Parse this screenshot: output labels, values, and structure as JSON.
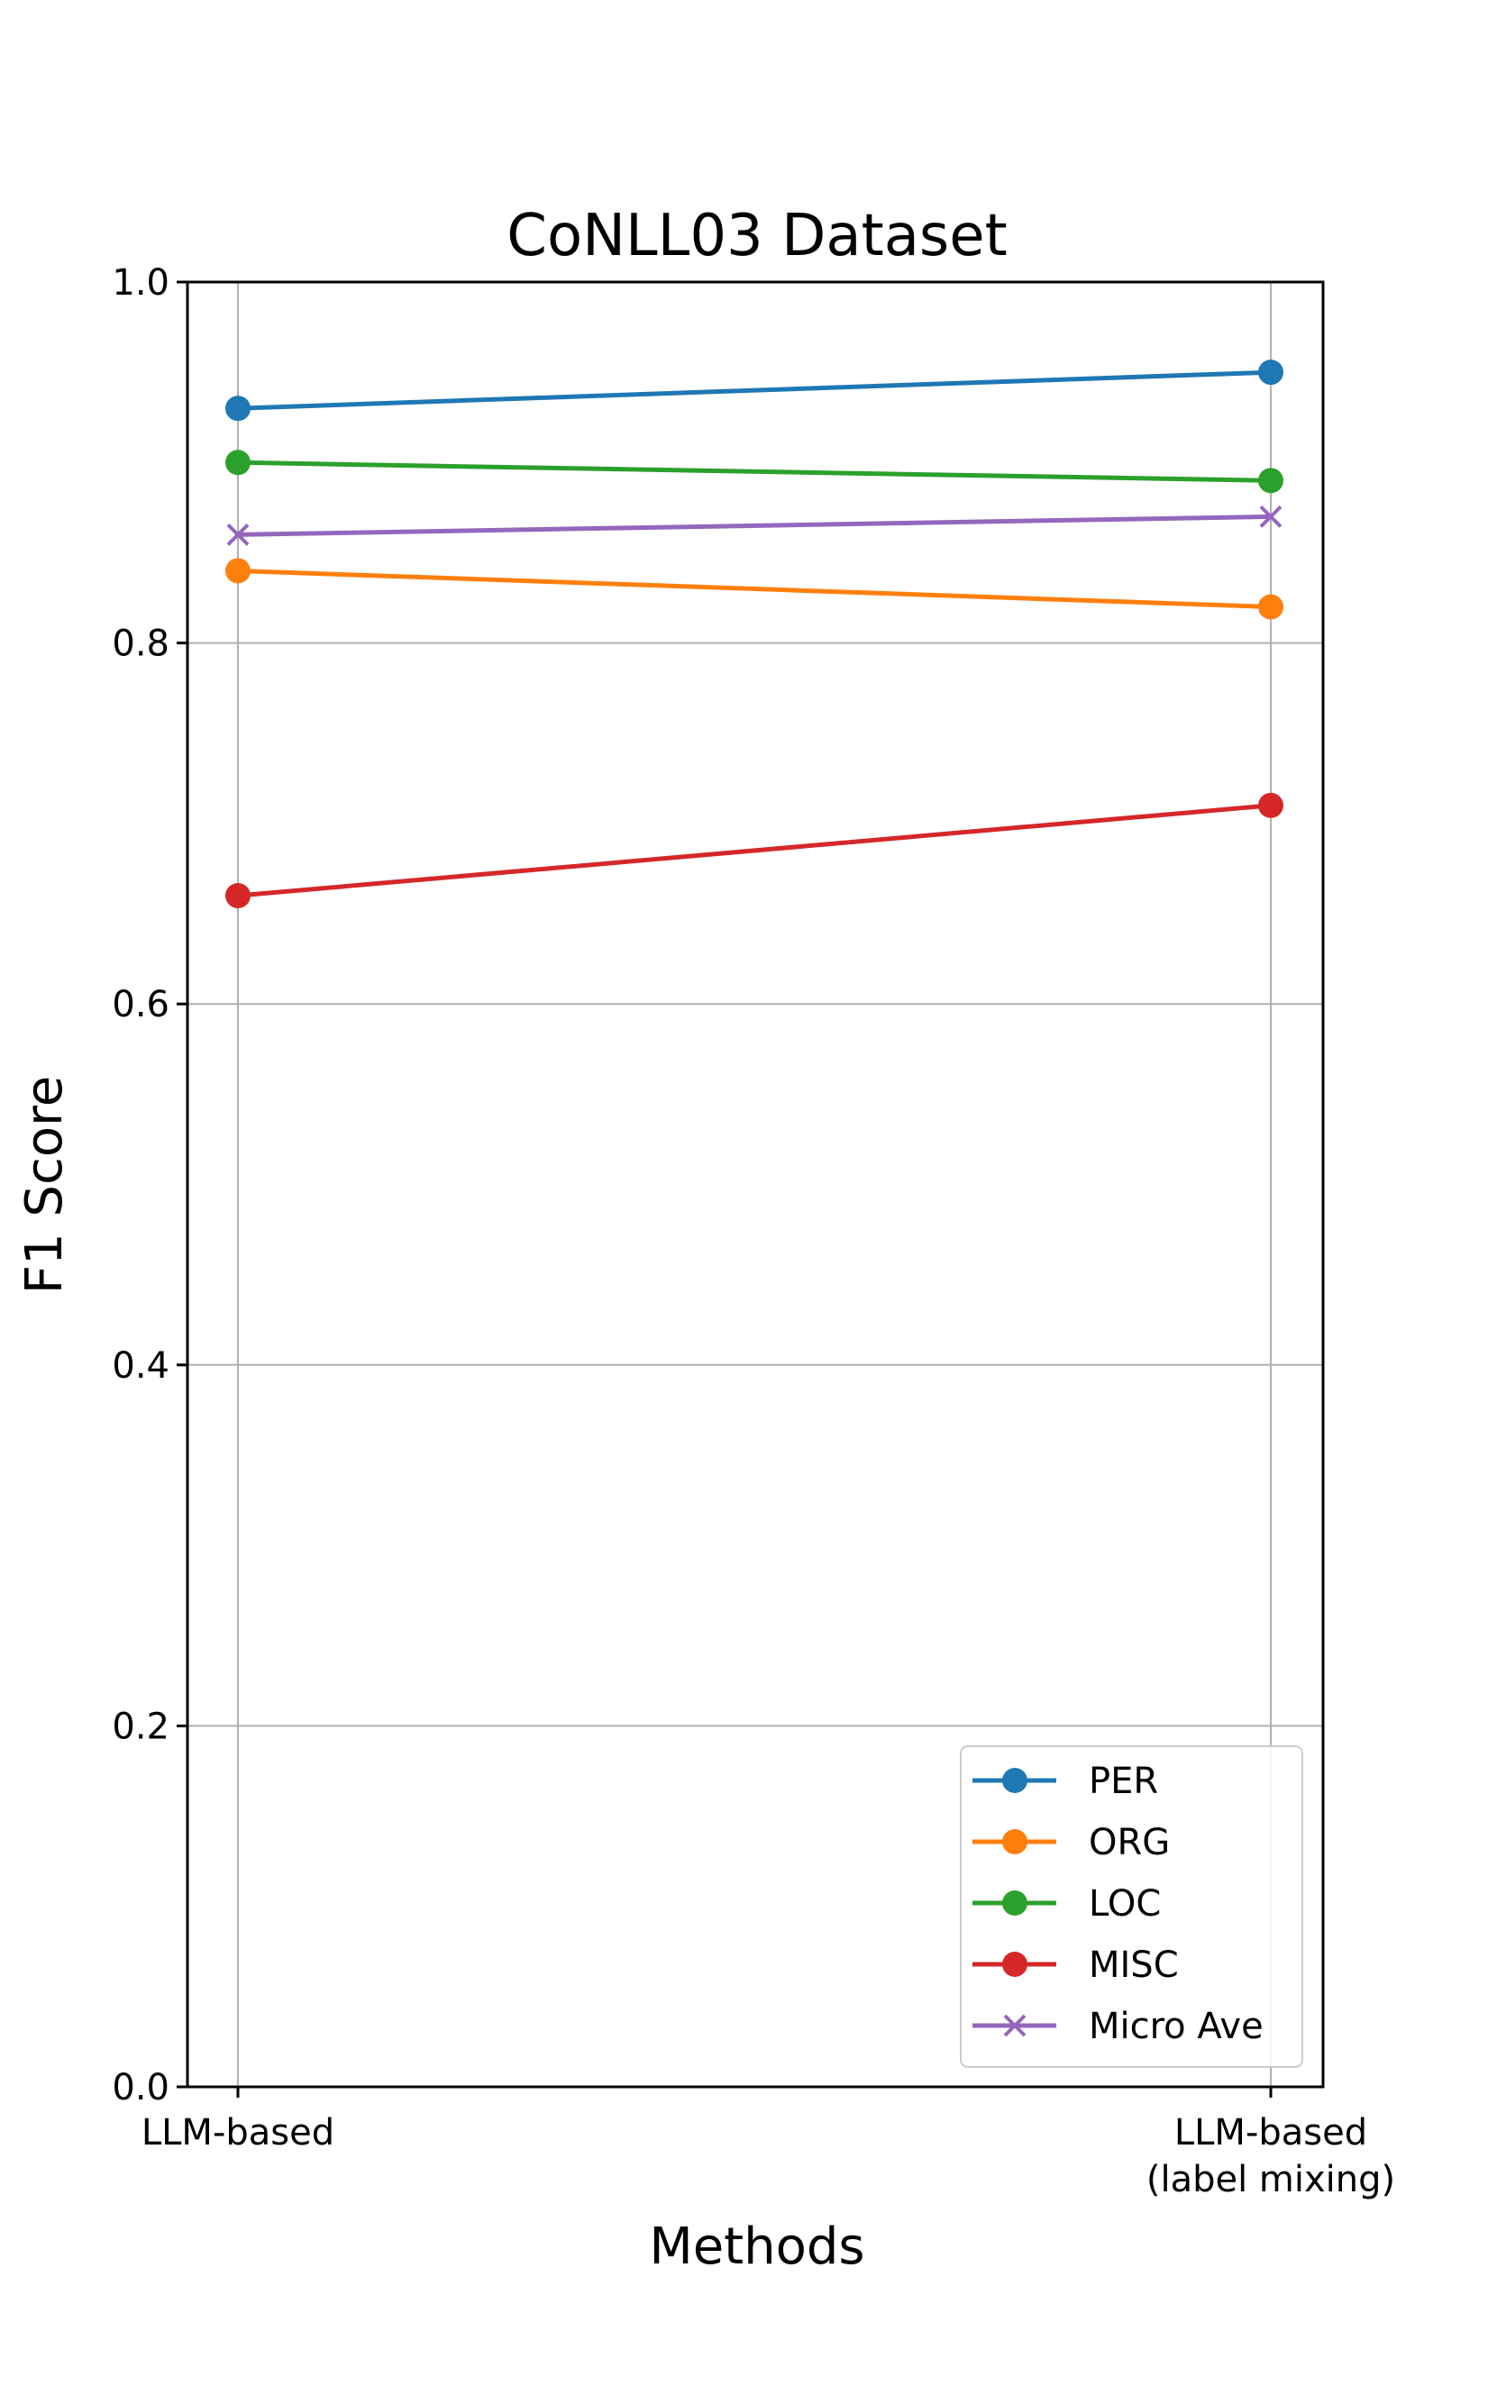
{
  "chart_data": {
    "type": "line",
    "title": "CoNLL03 Dataset",
    "xlabel": "Methods",
    "ylabel": "F1 Score",
    "categories": [
      {
        "lines": [
          "LLM-based"
        ]
      },
      {
        "lines": [
          "LLM-based",
          "(label mixing)"
        ]
      }
    ],
    "ylim": [
      0,
      1.0
    ],
    "yticks": [
      "0.0",
      "0.2",
      "0.4",
      "0.6",
      "0.8",
      "1.0"
    ],
    "grid": true,
    "legend_position": "lower-right",
    "series": [
      {
        "name": "PER",
        "values": [
          0.93,
          0.95
        ],
        "color": "#1f77b4",
        "marker": "circle"
      },
      {
        "name": "ORG",
        "values": [
          0.84,
          0.82
        ],
        "color": "#ff7f0e",
        "marker": "circle"
      },
      {
        "name": "LOC",
        "values": [
          0.9,
          0.89
        ],
        "color": "#2ca02c",
        "marker": "circle"
      },
      {
        "name": "MISC",
        "values": [
          0.66,
          0.71
        ],
        "color": "#d62728",
        "marker": "circle"
      },
      {
        "name": "Micro Ave",
        "values": [
          0.86,
          0.87
        ],
        "color": "#9467bd",
        "marker": "x"
      }
    ]
  }
}
